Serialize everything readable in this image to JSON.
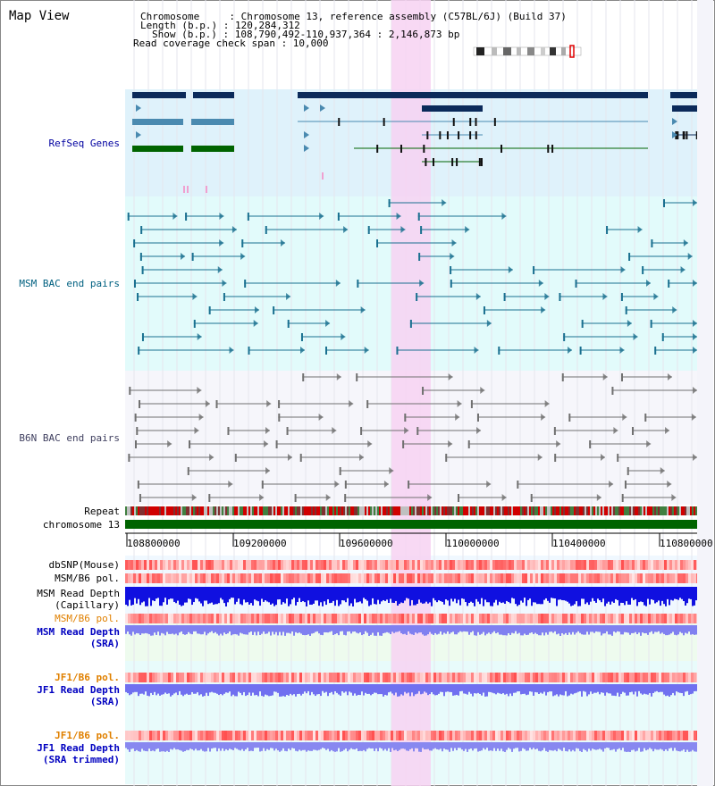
{
  "header": {
    "view_title": "Map View",
    "chromosome_line": "Chromosome     : Chromosome 13, reference assembly (C57BL/6J) (Build 37)",
    "length_line": "Length (b.p.) : 120,284,312",
    "show_line": "Show (b.p.) : 108,790,492-110,937,364 : 2,146,873 bp",
    "coverage_line": "Read coverage check span : 10,000"
  },
  "tracks": {
    "refseq": "RefSeq Genes",
    "msm_bac": "MSM BAC end pairs",
    "b6n_bac": "B6N BAC end pairs",
    "repeat": "Repeat",
    "chromosome": "chromosome 13",
    "dbsnp": "dbSNP(Mouse)",
    "msm_pol_1": "MSM/B6 pol.",
    "msm_depth_cap_1": "MSM Read Depth",
    "msm_depth_cap_2": "(Capillary)",
    "msm_pol_2": "MSM/B6 pol.",
    "msm_depth_sra_1": "MSM Read Depth",
    "msm_depth_sra_2": "(SRA)",
    "jf1_pol_1": "JF1/B6 pol.",
    "jf1_depth_sra_1": "JF1 Read Depth",
    "jf1_depth_sra_2": "(SRA)",
    "jf1_pol_2": "JF1/B6 pol.",
    "jf1_depth_trim_1": "JF1 Read Depth",
    "jf1_depth_trim_2": "(SRA trimmed)"
  },
  "axis": {
    "ticks": [
      "108800000",
      "109200000",
      "109600000",
      "110000000",
      "110400000",
      "110800000"
    ]
  },
  "colors": {
    "refseq_bg": "#dff2fb",
    "msm_bg": "#e2fbfb",
    "b6n_bg": "#f6f6fb",
    "highlight": "#f7d2f2",
    "refseq_label": "#0000a0",
    "msm_label": "#006080",
    "b6n_label": "#404060",
    "msm_pol_label": "#e08000",
    "depth_label": "#0000c0",
    "chromosome_bar": "#006400"
  }
}
